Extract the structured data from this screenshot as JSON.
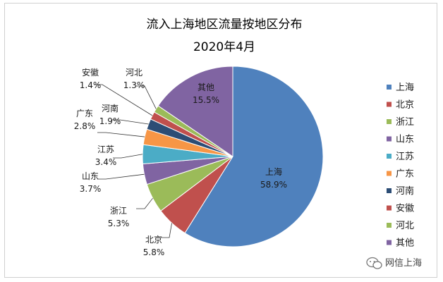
{
  "chart_data": {
    "type": "pie",
    "title": "流入上海地区流量按地区分布",
    "subtitle": "2020年4月",
    "legend_position": "right",
    "slices": [
      {
        "label": "上海",
        "value": 58.9,
        "value_text": "58.9%",
        "color": "#4F81BD"
      },
      {
        "label": "北京",
        "value": 5.8,
        "value_text": "5.8%",
        "color": "#C0504D"
      },
      {
        "label": "浙江",
        "value": 5.3,
        "value_text": "5.3%",
        "color": "#9BBB59"
      },
      {
        "label": "山东",
        "value": 3.7,
        "value_text": "3.7%",
        "color": "#8064A2"
      },
      {
        "label": "江苏",
        "value": 3.4,
        "value_text": "3.4%",
        "color": "#4BACC6"
      },
      {
        "label": "广东",
        "value": 2.8,
        "value_text": "2.8%",
        "color": "#F79646"
      },
      {
        "label": "河南",
        "value": 1.9,
        "value_text": "1.9%",
        "color": "#2C4D75"
      },
      {
        "label": "安徽",
        "value": 1.4,
        "value_text": "1.4%",
        "color": "#C0504D"
      },
      {
        "label": "河北",
        "value": 1.3,
        "value_text": "1.3%",
        "color": "#9BBB59"
      },
      {
        "label": "其他",
        "value": 15.5,
        "value_text": "15.5%",
        "color": "#8064A2"
      }
    ]
  },
  "watermark": {
    "icon": "wechat-icon",
    "text": "网信上海"
  }
}
